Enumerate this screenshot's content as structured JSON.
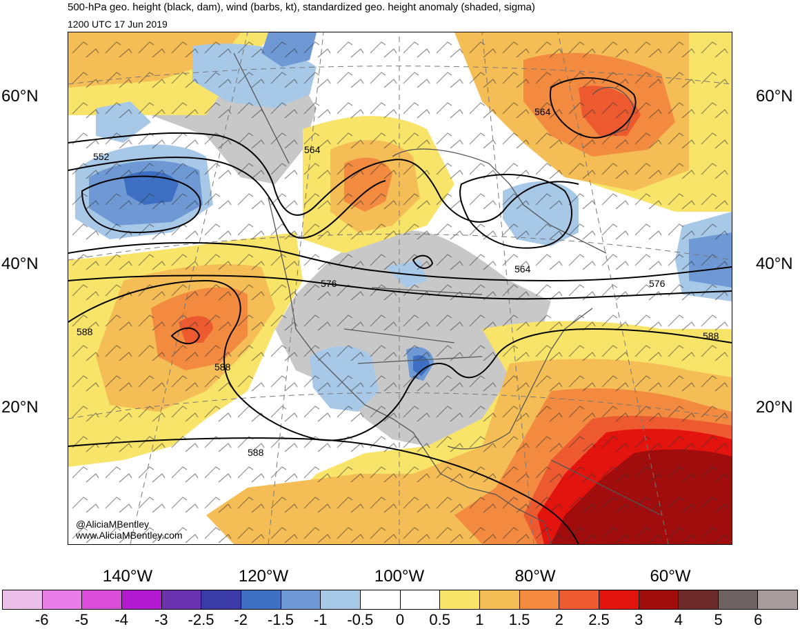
{
  "header": {
    "title": "500-hPa geo. height (black, dam), wind (barbs, kt), standardized geo. height anomaly (shaded, sigma)",
    "valid_time": "1200 UTC 17 Jun 2019"
  },
  "map": {
    "lat_labels": [
      "60°N",
      "40°N",
      "20°N"
    ],
    "lon_labels": [
      "140°W",
      "120°W",
      "100°W",
      "80°W",
      "60°W"
    ],
    "contour_labels": [
      "552",
      "564",
      "564",
      "564",
      "576",
      "576",
      "588",
      "588",
      "588",
      "588"
    ],
    "colors": {
      "land_gray": "#c8c8c8",
      "coast": "#555555",
      "contour": "#000000"
    }
  },
  "credits": {
    "handle": "@AliciaMBentley",
    "website": "www.AliciaMBentley.com"
  },
  "colorbar": {
    "labels": [
      "-6",
      "-5",
      "-4",
      "-3",
      "-2.5",
      "-2",
      "-1.5",
      "-1",
      "-0.5",
      "0",
      "0.5",
      "1",
      "1.5",
      "2",
      "2.5",
      "3",
      "4",
      "5",
      "6"
    ],
    "colors": [
      "#ecbfe8",
      "#e87de8",
      "#d94ed9",
      "#b31bd3",
      "#6b32b0",
      "#3b3ba8",
      "#3d6fc2",
      "#6e99d4",
      "#a8c8e8",
      "#ffffff",
      "#ffffff",
      "#f9e46a",
      "#f5bd55",
      "#f28b40",
      "#ee5a30",
      "#e3140e",
      "#a10d0d",
      "#6e2b2b",
      "#6f6262",
      "#a89b9b"
    ]
  }
}
